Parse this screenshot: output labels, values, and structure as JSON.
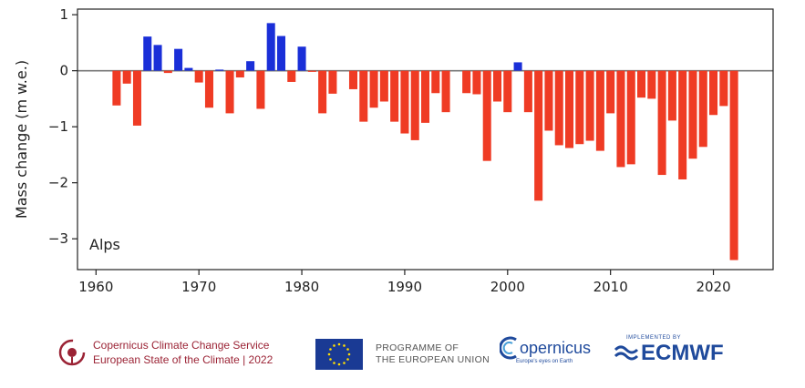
{
  "chart_data": {
    "type": "bar",
    "panel_label": "Alps",
    "ylabel": "Mass change (m w.e.)",
    "xlabel": "",
    "ylim": [
      -3.55,
      1.1
    ],
    "xlim": [
      1958.2,
      2025.8
    ],
    "x_ticks": [
      1960,
      1970,
      1980,
      1990,
      2000,
      2010,
      2020
    ],
    "y_ticks": [
      1,
      0,
      -1,
      -2,
      -3
    ],
    "grid": false,
    "positive_color": "#1a2fd8",
    "negative_color": "#ef3b24",
    "x": [
      1962,
      1963,
      1964,
      1965,
      1966,
      1967,
      1968,
      1969,
      1970,
      1971,
      1972,
      1973,
      1974,
      1975,
      1976,
      1977,
      1978,
      1979,
      1980,
      1981,
      1982,
      1983,
      1984,
      1985,
      1986,
      1987,
      1988,
      1989,
      1990,
      1991,
      1992,
      1993,
      1994,
      1995,
      1996,
      1997,
      1998,
      1999,
      2000,
      2001,
      2002,
      2003,
      2004,
      2005,
      2006,
      2007,
      2008,
      2009,
      2010,
      2011,
      2012,
      2013,
      2014,
      2015,
      2016,
      2017,
      2018,
      2019,
      2020,
      2021,
      2022
    ],
    "values": [
      -0.62,
      -0.23,
      -0.98,
      0.61,
      0.46,
      -0.04,
      0.39,
      0.05,
      -0.21,
      -0.66,
      0.02,
      -0.76,
      -0.12,
      0.17,
      -0.68,
      0.85,
      0.62,
      -0.2,
      0.43,
      -0.02,
      -0.76,
      -0.41,
      0.0,
      -0.33,
      -0.91,
      -0.66,
      -0.55,
      -0.91,
      -1.12,
      -1.24,
      -0.93,
      -0.4,
      -0.74,
      0.0,
      -0.4,
      -0.42,
      -1.61,
      -0.55,
      -0.74,
      0.15,
      -0.74,
      -2.32,
      -1.07,
      -1.33,
      -1.38,
      -1.31,
      -1.25,
      -1.43,
      -0.76,
      -1.72,
      -1.67,
      -0.48,
      -0.5,
      -1.86,
      -0.89,
      -1.94,
      -1.57,
      -1.36,
      -0.79,
      -0.63,
      -3.38
    ]
  },
  "footer": {
    "c3s_line1": "Copernicus Climate Change Service",
    "c3s_line2": "European State of the Climate | 2022",
    "eu_line1": "PROGRAMME OF",
    "eu_line2": "THE EUROPEAN UNION",
    "copernicus_name": "opernicus",
    "copernicus_tagline": "Europe's eyes on Earth",
    "ecmwf_tagline": "IMPLEMENTED BY",
    "ecmwf_name": "ECMWF"
  }
}
